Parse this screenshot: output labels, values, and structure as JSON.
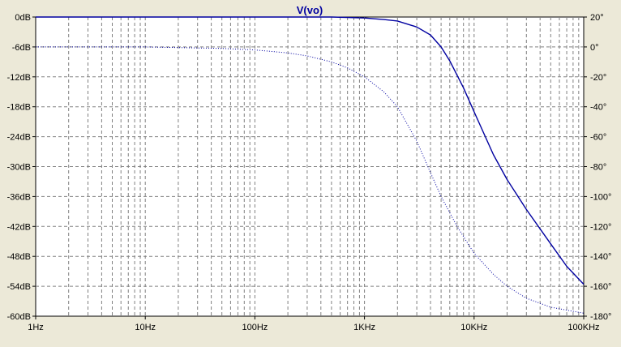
{
  "window": {
    "background": "#ece9d8",
    "plot_background": "#ffffff"
  },
  "chart_data": {
    "type": "line",
    "title": "V(vo)",
    "x_scale": "log",
    "xlim": [
      1,
      100000
    ],
    "x_ticks": [
      {
        "value": 1,
        "label": "1Hz"
      },
      {
        "value": 10,
        "label": "10Hz"
      },
      {
        "value": 100,
        "label": "100Hz"
      },
      {
        "value": 1000,
        "label": "1KHz"
      },
      {
        "value": 10000,
        "label": "10KHz"
      },
      {
        "value": 100000,
        "label": "100KHz"
      }
    ],
    "y_left": {
      "ylim": [
        -60,
        0
      ],
      "ticks": [
        {
          "value": 0,
          "label": "0dB"
        },
        {
          "value": -6,
          "label": "-6dB"
        },
        {
          "value": -12,
          "label": "-12dB"
        },
        {
          "value": -18,
          "label": "-18dB"
        },
        {
          "value": -24,
          "label": "-24dB"
        },
        {
          "value": -30,
          "label": "-30dB"
        },
        {
          "value": -36,
          "label": "-36dB"
        },
        {
          "value": -42,
          "label": "-42dB"
        },
        {
          "value": -48,
          "label": "-48dB"
        },
        {
          "value": -54,
          "label": "-54dB"
        },
        {
          "value": -60,
          "label": "-60dB"
        }
      ]
    },
    "y_right": {
      "ylim": [
        -180,
        20
      ],
      "ticks": [
        {
          "value": 20,
          "label": "20°"
        },
        {
          "value": 0,
          "label": "0°"
        },
        {
          "value": -20,
          "label": "-20°"
        },
        {
          "value": -40,
          "label": "-40°"
        },
        {
          "value": -60,
          "label": "-60°"
        },
        {
          "value": -80,
          "label": "-80°"
        },
        {
          "value": -100,
          "label": "-100°"
        },
        {
          "value": -120,
          "label": "-120°"
        },
        {
          "value": -140,
          "label": "-140°"
        },
        {
          "value": -160,
          "label": "-160°"
        },
        {
          "value": -180,
          "label": "-180°"
        }
      ]
    },
    "grid": true,
    "colors": {
      "trace": "#0000a0",
      "grid": "#808080",
      "text": "#000000"
    },
    "series": [
      {
        "axis": "left",
        "style": "solid",
        "x": [
          1,
          10,
          100,
          300,
          500,
          700,
          1000,
          1500,
          2000,
          3000,
          4000,
          5000,
          6000,
          8000,
          10000,
          15000,
          20000,
          30000,
          50000,
          70000,
          100000
        ],
        "y": [
          0,
          0,
          0,
          0,
          0,
          -0.1,
          -0.2,
          -0.5,
          -0.8,
          -2.0,
          -3.6,
          -6.0,
          -8.8,
          -14.2,
          -19.0,
          -27.6,
          -32.6,
          -38.6,
          -45.5,
          -50.0,
          -53.6
        ]
      },
      {
        "axis": "right",
        "style": "dotted",
        "x": [
          1,
          10,
          50,
          100,
          200,
          300,
          500,
          700,
          1000,
          1500,
          2000,
          3000,
          4000,
          5000,
          7000,
          10000,
          15000,
          20000,
          30000,
          50000,
          100000
        ],
        "y": [
          0,
          0,
          -1,
          -2,
          -4,
          -6,
          -10,
          -14,
          -20,
          -30,
          -40,
          -63,
          -84,
          -100,
          -120,
          -138,
          -152,
          -160,
          -168,
          -174,
          -178
        ]
      }
    ]
  }
}
